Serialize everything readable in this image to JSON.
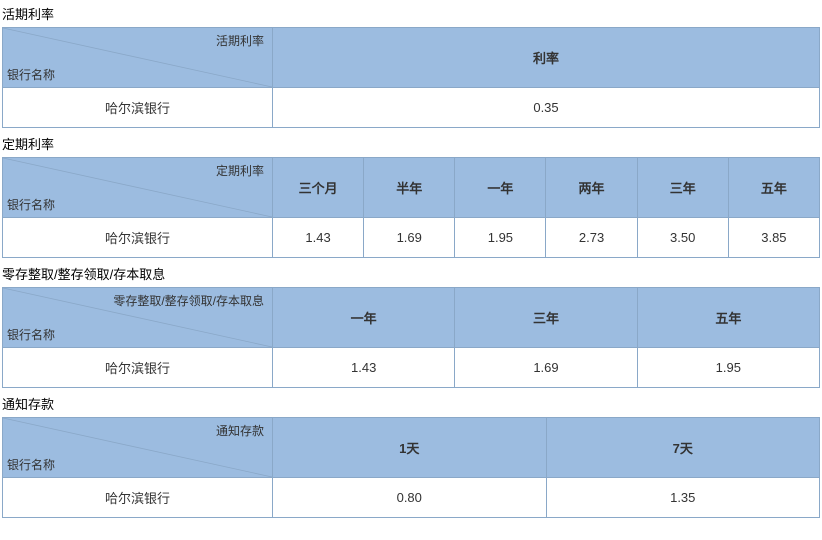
{
  "styles": {
    "header_bg": "#9cbce0",
    "border_color": "#8aa8c8",
    "row_bg": "#ffffff",
    "text_color": "#333333",
    "font_size": 13
  },
  "sections": [
    {
      "title": "活期利率",
      "diag_top": "活期利率",
      "diag_bottom": "银行名称",
      "diag_width": 270,
      "columns": [
        "利率"
      ],
      "rows": [
        {
          "bank": "哈尔滨银行",
          "values": [
            "0.35"
          ]
        }
      ]
    },
    {
      "title": "定期利率",
      "diag_top": "定期利率",
      "diag_bottom": "银行名称",
      "diag_width": 270,
      "columns": [
        "三个月",
        "半年",
        "一年",
        "两年",
        "三年",
        "五年"
      ],
      "rows": [
        {
          "bank": "哈尔滨银行",
          "values": [
            "1.43",
            "1.69",
            "1.95",
            "2.73",
            "3.50",
            "3.85"
          ]
        }
      ]
    },
    {
      "title": "零存整取/整存领取/存本取息",
      "diag_top": "零存整取/整存领取/存本取息",
      "diag_bottom": "银行名称",
      "diag_width": 270,
      "columns": [
        "一年",
        "三年",
        "五年"
      ],
      "rows": [
        {
          "bank": "哈尔滨银行",
          "values": [
            "1.43",
            "1.69",
            "1.95"
          ]
        }
      ]
    },
    {
      "title": "通知存款",
      "diag_top": "通知存款",
      "diag_bottom": "银行名称",
      "diag_width": 270,
      "columns": [
        "1天",
        "7天"
      ],
      "rows": [
        {
          "bank": "哈尔滨银行",
          "values": [
            "0.80",
            "1.35"
          ]
        }
      ]
    }
  ]
}
